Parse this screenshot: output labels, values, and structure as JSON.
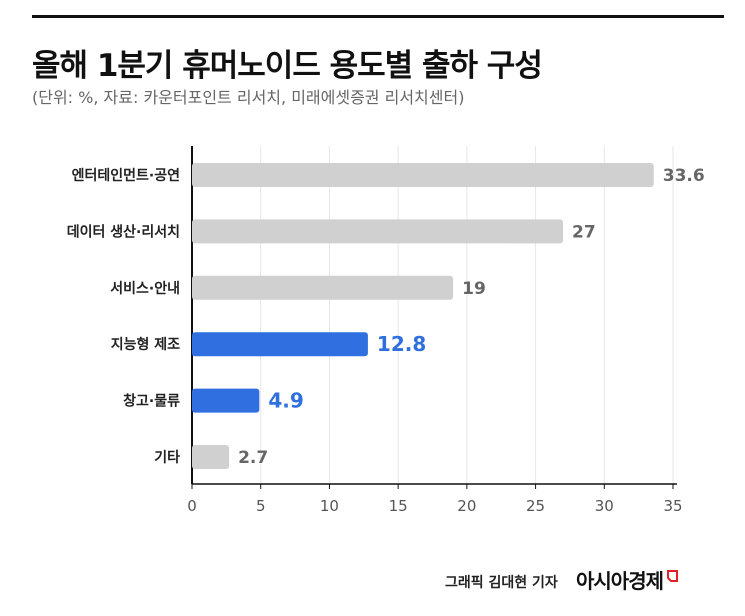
{
  "title": "올해 1분기 휴머노이드 용도별 출하 구성",
  "subtitle": "(단위: %, 자료: 카운터포인트 리서치, 미래에셋증권 리서치센터)",
  "credit": "그래픽  김대현 기자",
  "brand": "아시아경제",
  "colors": {
    "gray_bar": "#d0d0d0",
    "highlight_bar": "#2f6fe0",
    "gray_label": "#666666",
    "grid": "#e6e6e6",
    "axis": "#111111"
  },
  "chart_data": {
    "type": "bar",
    "orientation": "horizontal",
    "categories": [
      "엔터테인먼트·공연",
      "데이터 생산·리서치",
      "서비스·안내",
      "지능형 제조",
      "창고·물류",
      "기타"
    ],
    "values": [
      33.6,
      27,
      19,
      12.8,
      4.9,
      2.7
    ],
    "value_labels": [
      "33.6",
      "27",
      "19",
      "12.8",
      "4.9",
      "2.7"
    ],
    "highlighted": [
      false,
      false,
      false,
      true,
      true,
      false
    ],
    "xlim": [
      0,
      35
    ],
    "xticks": [
      0,
      5,
      10,
      15,
      20,
      25,
      30,
      35
    ],
    "grid": true,
    "xlabel": "",
    "ylabel": ""
  }
}
